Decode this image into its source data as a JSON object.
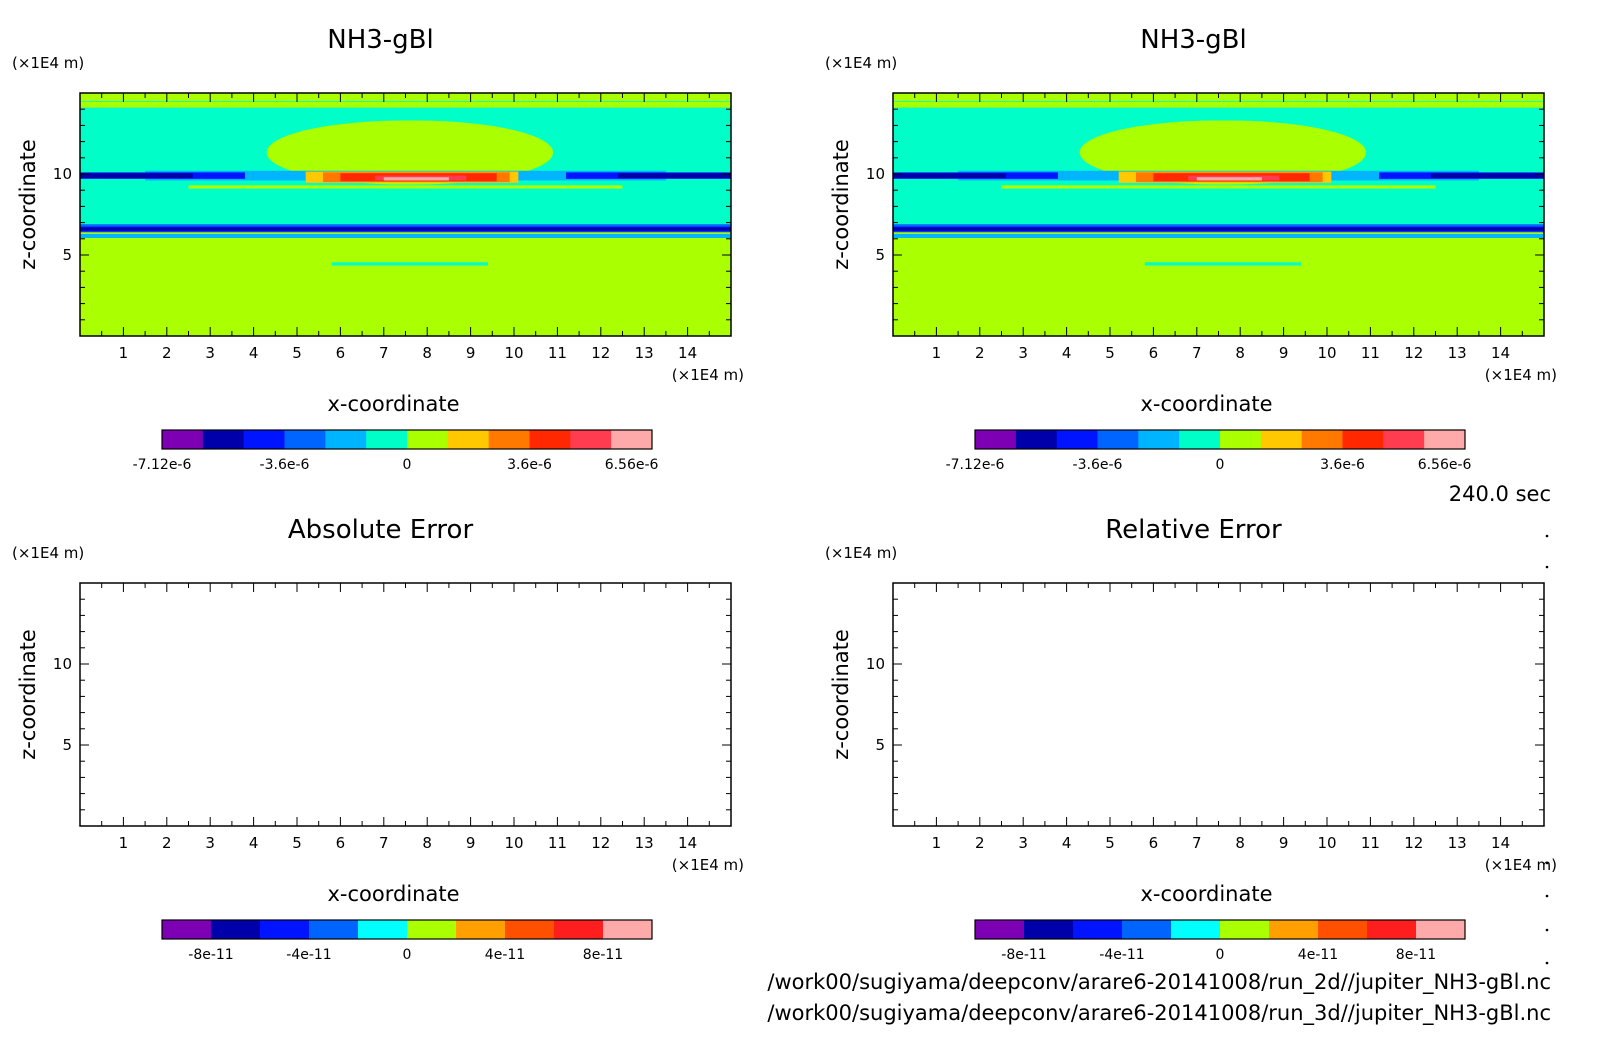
{
  "chart_data": [
    {
      "type": "heatmap",
      "title": "NH3-gBl",
      "xlabel": "x-coordinate",
      "ylabel": "z-coordinate",
      "x_unit": "(×1E4 m)",
      "y_unit": "(×1E4 m)",
      "xlim": [
        0,
        15
      ],
      "ylim": [
        0,
        15
      ],
      "x_ticks": [
        1,
        2,
        3,
        4,
        5,
        6,
        7,
        8,
        9,
        10,
        11,
        12,
        13,
        14
      ],
      "y_ticks": [
        5,
        10
      ],
      "filled": true,
      "colorbar": {
        "colors": [
          "#7e00b4",
          "#0000aa",
          "#0014ff",
          "#0064ff",
          "#00b4ff",
          "#00ffc8",
          "#aaff00",
          "#ffc800",
          "#ff7800",
          "#ff2800",
          "#ff3c50",
          "#ffaaaa"
        ],
        "tick_labels": [
          "-7.12e-6",
          "-3.6e-6",
          "0",
          "3.6e-6",
          "6.56e-6"
        ],
        "tick_positions": [
          0,
          3,
          6,
          9,
          11.5
        ]
      }
    },
    {
      "type": "heatmap",
      "title": "NH3-gBl",
      "xlabel": "x-coordinate",
      "ylabel": "z-coordinate",
      "x_unit": "(×1E4 m)",
      "y_unit": "(×1E4 m)",
      "xlim": [
        0,
        15
      ],
      "ylim": [
        0,
        15
      ],
      "x_ticks": [
        1,
        2,
        3,
        4,
        5,
        6,
        7,
        8,
        9,
        10,
        11,
        12,
        13,
        14
      ],
      "y_ticks": [
        5,
        10
      ],
      "filled": true,
      "colorbar": {
        "colors": [
          "#7e00b4",
          "#0000aa",
          "#0014ff",
          "#0064ff",
          "#00b4ff",
          "#00ffc8",
          "#aaff00",
          "#ffc800",
          "#ff7800",
          "#ff2800",
          "#ff3c50",
          "#ffaaaa"
        ],
        "tick_labels": [
          "-7.12e-6",
          "-3.6e-6",
          "0",
          "3.6e-6",
          "6.56e-6"
        ],
        "tick_positions": [
          0,
          3,
          6,
          9,
          11.5
        ]
      }
    },
    {
      "type": "heatmap",
      "title": "Absolute Error",
      "xlabel": "x-coordinate",
      "ylabel": "z-coordinate",
      "x_unit": "(×1E4 m)",
      "y_unit": "(×1E4 m)",
      "xlim": [
        0,
        15
      ],
      "ylim": [
        0,
        15
      ],
      "x_ticks": [
        1,
        2,
        3,
        4,
        5,
        6,
        7,
        8,
        9,
        10,
        11,
        12,
        13,
        14
      ],
      "y_ticks": [
        5,
        10
      ],
      "filled": false,
      "colorbar": {
        "colors": [
          "#7e00b4",
          "#0000aa",
          "#0014ff",
          "#0064ff",
          "#00ffff",
          "#aaff00",
          "#ffa000",
          "#ff5000",
          "#ff1e1e",
          "#ffaaaa"
        ],
        "tick_labels": [
          "-8e-11",
          "-4e-11",
          "0",
          "4e-11",
          "8e-11"
        ],
        "tick_positions": [
          1,
          3,
          5,
          7,
          9
        ]
      }
    },
    {
      "type": "heatmap",
      "title": "Relative Error",
      "xlabel": "x-coordinate",
      "ylabel": "z-coordinate",
      "x_unit": "(×1E4 m)",
      "y_unit": "(×1E4 m)",
      "xlim": [
        0,
        15
      ],
      "ylim": [
        0,
        15
      ],
      "x_ticks": [
        1,
        2,
        3,
        4,
        5,
        6,
        7,
        8,
        9,
        10,
        11,
        12,
        13,
        14
      ],
      "y_ticks": [
        5,
        10
      ],
      "filled": false,
      "colorbar": {
        "colors": [
          "#7e00b4",
          "#0000aa",
          "#0014ff",
          "#0064ff",
          "#00ffff",
          "#aaff00",
          "#ffa000",
          "#ff5000",
          "#ff1e1e",
          "#ffaaaa"
        ],
        "tick_labels": [
          "-8e-11",
          "-4e-11",
          "0",
          "4e-11",
          "8e-11"
        ],
        "tick_positions": [
          1,
          3,
          5,
          7,
          9
        ]
      }
    }
  ],
  "time_label": "240.0 sec",
  "footer": {
    "line1": "/work00/sugiyama/deepconv/arare6-20141008/run_2d//jupiter_NH3-gBl.nc",
    "line2": "/work00/sugiyama/deepconv/arare6-20141008/run_3d//jupiter_NH3-gBl.nc"
  }
}
